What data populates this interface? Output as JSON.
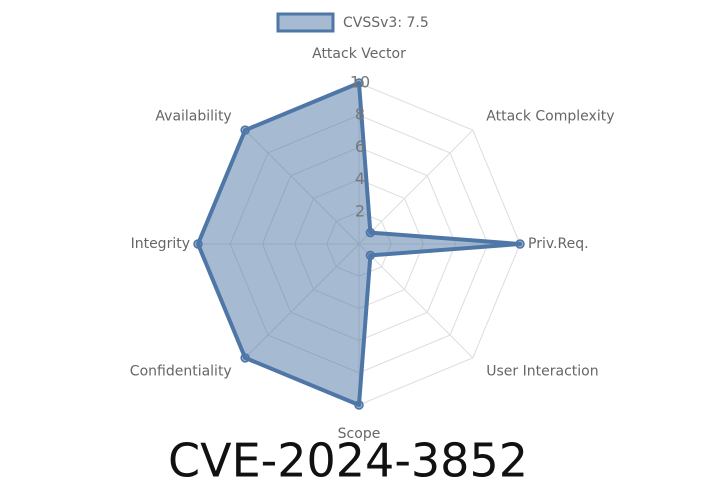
{
  "chart_data": {
    "type": "radar",
    "title": "CVE-2024-3852",
    "categories": [
      "Attack Vector",
      "Attack Complexity",
      "Priv.Req.",
      "User Interaction",
      "Scope",
      "Confidentiality",
      "Integrity",
      "Availability"
    ],
    "series": [
      {
        "name": "CVSSv3: 7.5",
        "color": "#4e76a6",
        "values": [
          10,
          1,
          10,
          1,
          10,
          10,
          10,
          10
        ]
      }
    ],
    "ylim": [
      0,
      10
    ],
    "yticks": [
      2,
      4,
      6,
      8,
      10
    ],
    "grid": true
  }
}
